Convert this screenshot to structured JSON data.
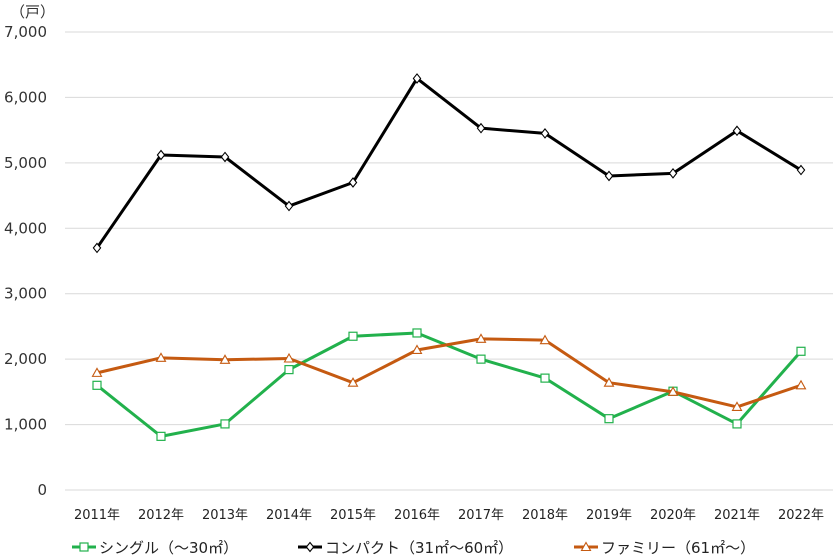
{
  "chart_data": {
    "type": "line",
    "title": "",
    "xlabel": "",
    "ylabel": "",
    "unit_label": "（戸）",
    "categories": [
      "2011年",
      "2012年",
      "2013年",
      "2014年",
      "2015年",
      "2016年",
      "2017年",
      "2018年",
      "2019年",
      "2020年",
      "2021年",
      "2022年"
    ],
    "y_ticks": [
      "0",
      "1,000",
      "2,000",
      "3,000",
      "4,000",
      "5,000",
      "6,000",
      "7,000"
    ],
    "ylim": [
      0,
      7000
    ],
    "grid": true,
    "legend_position": "bottom",
    "series": [
      {
        "name": "シングル（～30㎡）",
        "color": "#22b14c",
        "marker": "square",
        "values": [
          1600,
          820,
          1010,
          1840,
          2350,
          2400,
          2000,
          1710,
          1090,
          1510,
          1010,
          2120
        ]
      },
      {
        "name": "コンパクト（31㎡～60㎡）",
        "color": "#000000",
        "marker": "diamond",
        "values": [
          3700,
          5120,
          5090,
          4340,
          4700,
          6290,
          5530,
          5450,
          4800,
          4840,
          5490,
          4890
        ]
      },
      {
        "name": "ファミリー（61㎡～）",
        "color": "#c55a11",
        "marker": "triangle",
        "values": [
          1790,
          2020,
          1990,
          2010,
          1640,
          2140,
          2310,
          2290,
          1640,
          1500,
          1270,
          1600
        ]
      }
    ]
  }
}
